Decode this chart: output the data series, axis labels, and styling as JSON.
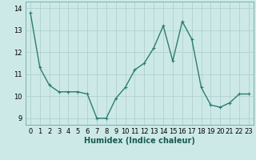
{
  "x": [
    0,
    1,
    2,
    3,
    4,
    5,
    6,
    7,
    8,
    9,
    10,
    11,
    12,
    13,
    14,
    15,
    16,
    17,
    18,
    19,
    20,
    21,
    22,
    23
  ],
  "y": [
    13.8,
    11.3,
    10.5,
    10.2,
    10.2,
    10.2,
    10.1,
    9.0,
    9.0,
    9.9,
    10.4,
    11.2,
    11.5,
    12.2,
    13.2,
    11.6,
    13.4,
    12.6,
    10.4,
    9.6,
    9.5,
    9.7,
    10.1,
    10.1
  ],
  "line_color": "#2e7d6e",
  "marker": "+",
  "marker_size": 3,
  "bg_color": "#cce9e8",
  "grid_color": "#b0d0ce",
  "xlabel": "Humidex (Indice chaleur)",
  "xlim": [
    -0.5,
    23.5
  ],
  "ylim": [
    8.7,
    14.3
  ],
  "yticks": [
    9,
    10,
    11,
    12,
    13,
    14
  ],
  "xticks": [
    0,
    1,
    2,
    3,
    4,
    5,
    6,
    7,
    8,
    9,
    10,
    11,
    12,
    13,
    14,
    15,
    16,
    17,
    18,
    19,
    20,
    21,
    22,
    23
  ],
  "xlabel_fontsize": 7,
  "tick_fontsize": 6,
  "line_width": 1.0
}
